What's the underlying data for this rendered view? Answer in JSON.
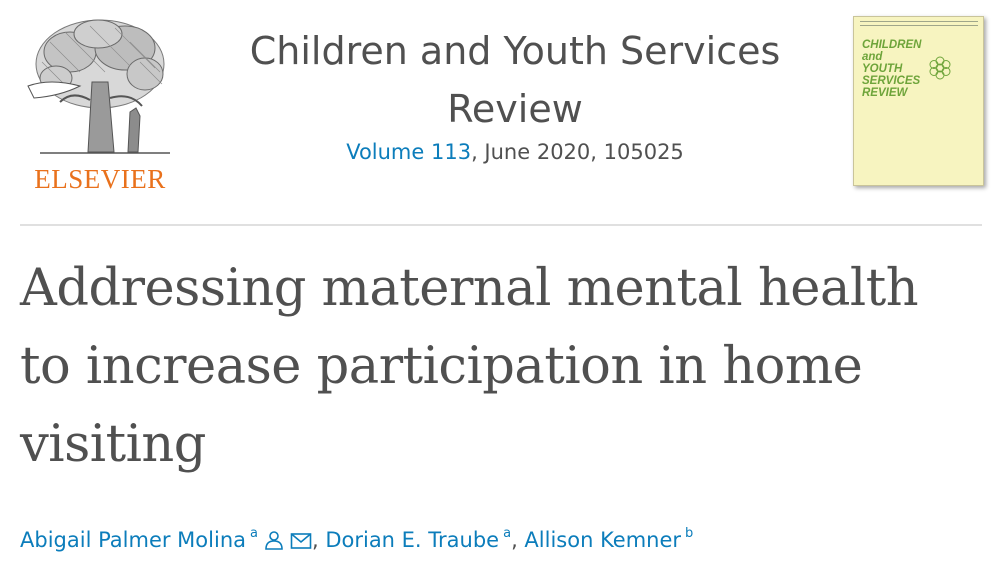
{
  "publisher": {
    "name": "ELSEVIER"
  },
  "journal": {
    "title": "Children and Youth Services Review",
    "volume_link": "Volume 113",
    "issue_rest": ", June 2020, 105025",
    "cover": {
      "title_lines": [
        "CHILDREN",
        "and",
        "YOUTH",
        "SERVICES",
        "REVIEW"
      ],
      "accent_color": "#6ea43a",
      "background_color": "#f7f4c0"
    }
  },
  "article": {
    "title": "Addressing maternal mental health to increase participation in home visiting"
  },
  "authors": [
    {
      "name": "Abigail Palmer Molina",
      "affiliation": "a",
      "icons": [
        "person-icon",
        "envelope-icon"
      ]
    },
    {
      "name": "Dorian E. Traube",
      "affiliation": "a"
    },
    {
      "name": "Allison Kemner",
      "affiliation": "b"
    }
  ],
  "separators": {
    "author": ", "
  },
  "colors": {
    "link": "#0c7dbb",
    "text": "#505050",
    "publisher": "#e9711c"
  }
}
